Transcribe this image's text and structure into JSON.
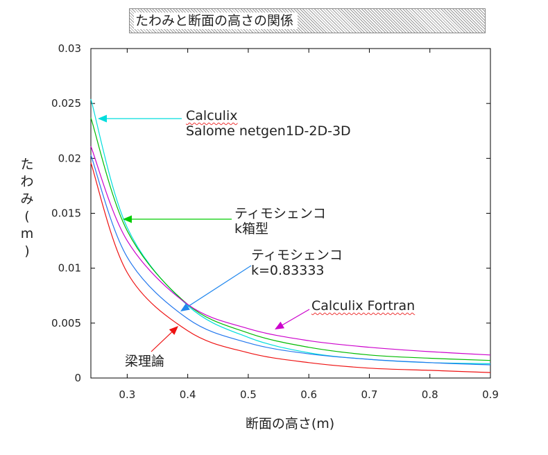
{
  "chart_data": {
    "type": "line",
    "title": "たわみと断面の高さの関係",
    "xlabel": "断面の高さ(m)",
    "ylabel": "たわみ(m)",
    "xlim": [
      0.24,
      0.9
    ],
    "ylim": [
      0,
      0.03
    ],
    "x_ticks": [
      "0.3",
      "0.4",
      "0.5",
      "0.6",
      "0.7",
      "0.8",
      "0.9"
    ],
    "y_ticks": [
      "0",
      "0.005",
      "0.01",
      "0.015",
      "0.02",
      "0.025",
      "0.03"
    ],
    "grid": false,
    "legend": "none",
    "x": [
      0.24,
      0.3,
      0.4,
      0.5,
      0.6,
      0.7,
      0.8,
      0.9
    ],
    "series": [
      {
        "values": [
          0.0254,
          0.0137,
          0.0066,
          0.0037,
          0.0023,
          0.0017,
          0.0014,
          0.0013
        ],
        "color": "#00dddd"
      },
      {
        "values": [
          0.0237,
          0.0134,
          0.0067,
          0.0041,
          0.0028,
          0.0021,
          0.0018,
          0.0016
        ],
        "color": "#00bb00"
      },
      {
        "values": [
          0.0211,
          0.0125,
          0.0067,
          0.0045,
          0.0034,
          0.0028,
          0.0024,
          0.0021
        ],
        "color": "#cc00cc"
      },
      {
        "values": [
          0.0203,
          0.011,
          0.0054,
          0.0032,
          0.0022,
          0.0017,
          0.0014,
          0.0012
        ],
        "color": "#2277ee"
      },
      {
        "values": [
          0.0196,
          0.0096,
          0.0043,
          0.0023,
          0.0014,
          0.0009,
          0.0007,
          0.0005
        ],
        "color": "#ee1111"
      }
    ],
    "annotations": [
      {
        "lines": [
          "Calculix",
          "Salome netgen1D-2D-3D"
        ],
        "color": "#00dddd"
      },
      {
        "lines": [
          "ティモシェンコ",
          "k箱型"
        ],
        "color": "#00cc00"
      },
      {
        "lines": [
          "ティモシェンコ",
          "k=0.83333"
        ],
        "color": "#2288ee"
      },
      {
        "lines": [
          "Calculix Fortran"
        ],
        "color": "#cc00cc"
      },
      {
        "lines": [
          "梁理論"
        ],
        "color": "#ee1111"
      }
    ]
  }
}
